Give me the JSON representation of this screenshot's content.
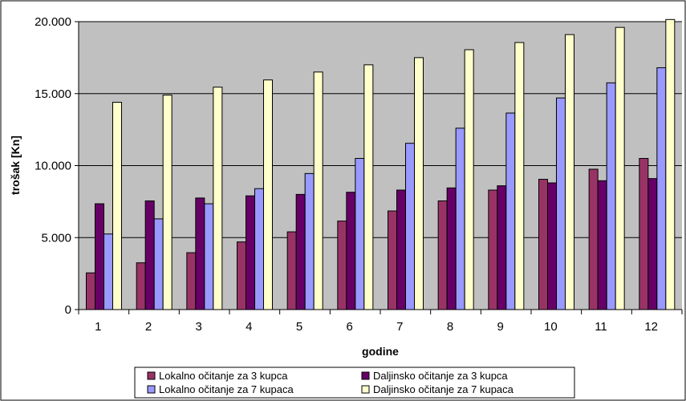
{
  "chart_data": {
    "type": "bar",
    "title": "",
    "xlabel": "godine",
    "ylabel": "trošak [Kn]",
    "ylim": [
      0,
      20000
    ],
    "yticks": [
      0,
      5000,
      10000,
      15000,
      20000
    ],
    "ytick_labels": [
      "0",
      "5.000",
      "10.000",
      "15.000",
      "20.000"
    ],
    "grid": true,
    "legend_position": "bottom",
    "categories": [
      "1",
      "2",
      "3",
      "4",
      "5",
      "6",
      "7",
      "8",
      "9",
      "10",
      "11",
      "12"
    ],
    "series": [
      {
        "name": "Lokalno očitanje za 3 kupca",
        "color": "#993366",
        "values": [
          2550,
          3250,
          3950,
          4700,
          5400,
          6150,
          6850,
          7550,
          8300,
          9050,
          9750,
          10500
        ]
      },
      {
        "name": "Daljinsko očitanje za 3 kupca",
        "color": "#660066",
        "values": [
          7350,
          7550,
          7750,
          7900,
          8000,
          8150,
          8300,
          8450,
          8600,
          8800,
          8950,
          9100
        ]
      },
      {
        "name": "Lokalno očitanje za 7 kupaca",
        "color": "#9999FF",
        "values": [
          5250,
          6300,
          7350,
          8400,
          9450,
          10500,
          11550,
          12600,
          13650,
          14700,
          15750,
          16800
        ]
      },
      {
        "name": "Daljinsko očitanje za 7 kupaca",
        "color": "#FFFFCC",
        "values": [
          14400,
          14900,
          15450,
          15950,
          16500,
          17000,
          17500,
          18050,
          18550,
          19100,
          19600,
          20150
        ]
      }
    ]
  }
}
